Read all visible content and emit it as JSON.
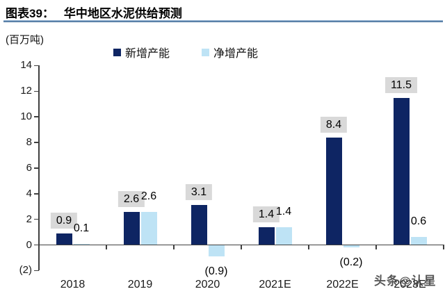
{
  "header": {
    "title_prefix": "图表39：",
    "title": "华中地区水泥供给预测",
    "unit_label": "(百万吨)"
  },
  "watermark": "头条@认星",
  "colors": {
    "new_capacity_bar": "#0e2563",
    "net_capacity_bar": "#bee3f5",
    "label_box_bg": "#d9d9d9",
    "axis": "#3f3f3f",
    "title_underline": "#35618f"
  },
  "chart_data": {
    "type": "bar",
    "title": "华中地区水泥供给预测",
    "unit": "百万吨",
    "categories": [
      "2018",
      "2019",
      "2020",
      "2021E",
      "2022E",
      "2023E"
    ],
    "series": [
      {
        "name": "新增产能",
        "color": "#0e2563",
        "values": [
          0.9,
          2.6,
          3.1,
          1.4,
          8.4,
          11.5
        ],
        "labels": [
          "0.9",
          "2.6",
          "3.1",
          "1.4",
          "8.4",
          "11.5"
        ],
        "label_boxed": true
      },
      {
        "name": "净增产能",
        "color": "#bee3f5",
        "values": [
          0.1,
          2.6,
          -0.9,
          1.4,
          -0.2,
          0.6
        ],
        "labels": [
          "0.1",
          "2.6",
          "(0.9)",
          "1.4",
          "(0.2)",
          "0.6"
        ],
        "label_boxed": false
      }
    ],
    "xlabel": "",
    "ylabel": "",
    "ylim": [
      -2,
      14
    ],
    "y_tick_step": 2,
    "y_tick_values": [
      14,
      12,
      10,
      8,
      6,
      4,
      2,
      0,
      -2
    ],
    "y_tick_labels": [
      "14",
      "12",
      "10",
      "8",
      "6",
      "4",
      "2",
      "0",
      "(2)"
    ],
    "grid": false,
    "legend_position": "top"
  }
}
